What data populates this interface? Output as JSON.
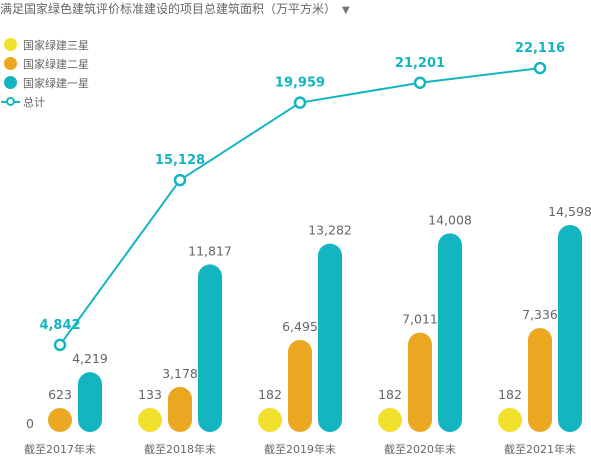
{
  "chart_data": {
    "type": "bar",
    "title": "满足国家绿色建筑评价标准建设的项目总建筑面积（万平方米）",
    "title_dropdown_icon": "triangle-down-icon",
    "categories": [
      "截至2017年末",
      "截至2018年末",
      "截至2019年末",
      "截至2020年末",
      "截至2021年末"
    ],
    "series": [
      {
        "name": "国家绿建三星",
        "type": "bar",
        "color": "#f2e12c",
        "values": [
          0,
          133,
          182,
          182,
          182
        ]
      },
      {
        "name": "国家绿建二星",
        "type": "bar",
        "color": "#eba721",
        "values": [
          623,
          3178,
          6495,
          7011,
          7336
        ]
      },
      {
        "name": "国家绿建一星",
        "type": "bar",
        "color": "#13b5c1",
        "values": [
          4219,
          11817,
          13282,
          14008,
          14598
        ]
      },
      {
        "name": "总计",
        "type": "line",
        "color": "#13b5c1",
        "values": [
          4842,
          15128,
          19959,
          21201,
          22116
        ]
      }
    ],
    "bar_labels": [
      [
        "0",
        "133",
        "182",
        "182",
        "182"
      ],
      [
        "623",
        "3,178",
        "6,495",
        "7,011",
        "7,336"
      ],
      [
        "4,219",
        "11,817",
        "13,282",
        "14,008",
        "14,598"
      ]
    ],
    "line_labels": [
      "4,842",
      "15,128",
      "19,959",
      "21,201",
      "22,116"
    ],
    "legend_position": "top-left",
    "grid": false
  }
}
